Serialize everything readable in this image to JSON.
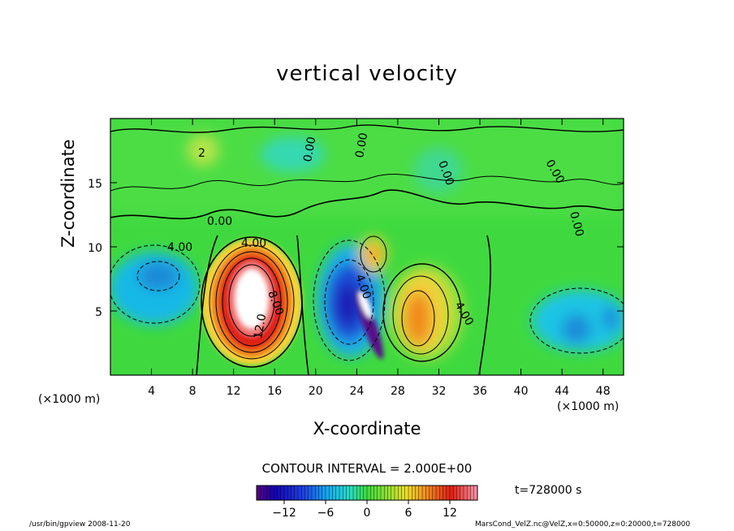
{
  "chart_data": {
    "type": "heatmap",
    "title": "vertical velocity",
    "xlabel": "X-coordinate",
    "ylabel": "Z-coordinate",
    "x_unit_label": "(×1000 m)",
    "xlim": [
      0,
      50
    ],
    "ylim": [
      0,
      20
    ],
    "x_ticks": [
      "4",
      "8",
      "12",
      "16",
      "20",
      "24",
      "28",
      "32",
      "36",
      "40",
      "44",
      "48"
    ],
    "y_ticks": [
      "5",
      "10",
      "15"
    ],
    "contour_interval_label": "CONTOUR INTERVAL = 2.000E+00",
    "contour_labels": [
      "4.00",
      "4.00",
      "8.00",
      "12.0",
      "4.00",
      "0.00",
      "0.00",
      "0.00",
      "0.00",
      "0.00",
      "0.00",
      "4.00",
      "2"
    ],
    "colorbar": {
      "range": [
        -16,
        16
      ],
      "tick_labels": [
        "−12",
        "−6",
        "0",
        "6",
        "12"
      ],
      "tick_values": [
        -12,
        -6,
        0,
        6,
        12
      ]
    },
    "time_label": "t=728000 s",
    "features": [
      {
        "x": 13.5,
        "z": 6,
        "value": 16,
        "kind": "updraft"
      },
      {
        "x": 30.5,
        "z": 4.5,
        "value": 8,
        "kind": "updraft"
      },
      {
        "x": 25,
        "z": 9.5,
        "value": 8,
        "kind": "updraft"
      },
      {
        "x": 23,
        "z": 5,
        "value": -14,
        "kind": "downdraft"
      },
      {
        "x": 5,
        "z": 7.5,
        "value": -6,
        "kind": "downdraft"
      },
      {
        "x": 45.5,
        "z": 3.5,
        "value": -5,
        "kind": "downdraft"
      }
    ]
  },
  "footer": {
    "left": "/usr/bin/gpview   2008-11-20",
    "right": "MarsCond_VelZ.nc@VelZ,x=0:50000,z=0:20000,t=728000"
  }
}
